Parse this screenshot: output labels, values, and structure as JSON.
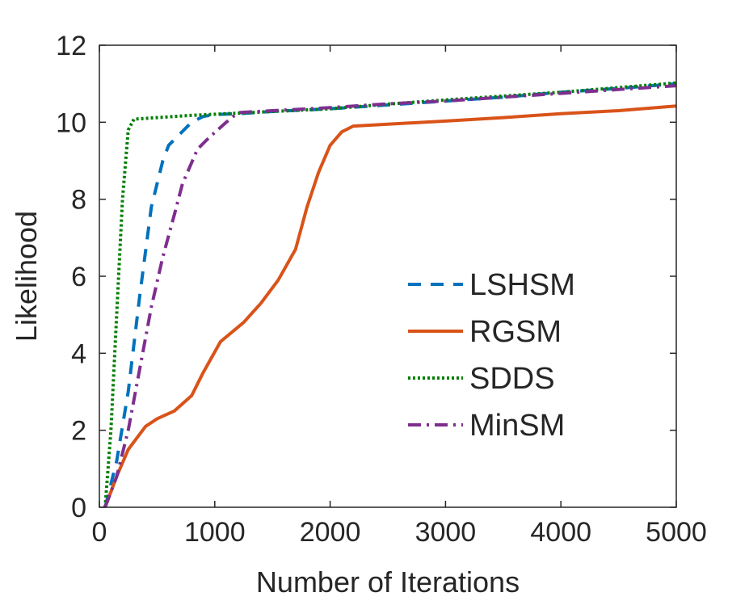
{
  "chart_data": {
    "type": "line",
    "title": "",
    "xlabel": "Number of Iterations",
    "ylabel": "Likelihood",
    "xlim": [
      0,
      5000
    ],
    "ylim": [
      0,
      12
    ],
    "xticks": [
      0,
      1000,
      2000,
      3000,
      4000,
      5000
    ],
    "yticks": [
      0,
      2,
      4,
      6,
      8,
      10,
      12
    ],
    "grid": false,
    "legend_position": "center-right",
    "series": [
      {
        "name": "LSHSM",
        "color": "#0072BD",
        "style": "dashed",
        "points": [
          [
            50,
            0
          ],
          [
            150,
            1.2
          ],
          [
            250,
            3.0
          ],
          [
            350,
            5.5
          ],
          [
            450,
            7.8
          ],
          [
            550,
            9.0
          ],
          [
            600,
            9.4
          ],
          [
            700,
            9.7
          ],
          [
            800,
            10.0
          ],
          [
            900,
            10.15
          ],
          [
            1000,
            10.2
          ],
          [
            1200,
            10.22
          ],
          [
            1500,
            10.28
          ],
          [
            2000,
            10.35
          ],
          [
            2500,
            10.45
          ],
          [
            3000,
            10.55
          ],
          [
            3500,
            10.65
          ],
          [
            4000,
            10.78
          ],
          [
            4500,
            10.88
          ],
          [
            5000,
            11.0
          ]
        ]
      },
      {
        "name": "RGSM",
        "color": "#D95319",
        "style": "solid",
        "points": [
          [
            50,
            0
          ],
          [
            150,
            0.8
          ],
          [
            250,
            1.5
          ],
          [
            400,
            2.1
          ],
          [
            500,
            2.3
          ],
          [
            650,
            2.5
          ],
          [
            800,
            2.9
          ],
          [
            900,
            3.5
          ],
          [
            1050,
            4.3
          ],
          [
            1250,
            4.8
          ],
          [
            1400,
            5.3
          ],
          [
            1550,
            5.9
          ],
          [
            1700,
            6.7
          ],
          [
            1800,
            7.8
          ],
          [
            1900,
            8.7
          ],
          [
            2000,
            9.4
          ],
          [
            2100,
            9.75
          ],
          [
            2200,
            9.9
          ],
          [
            2500,
            9.95
          ],
          [
            3000,
            10.03
          ],
          [
            3500,
            10.12
          ],
          [
            4000,
            10.22
          ],
          [
            4500,
            10.3
          ],
          [
            5000,
            10.42
          ]
        ]
      },
      {
        "name": "SDDS",
        "color": "#007F00",
        "style": "dotted",
        "points": [
          [
            50,
            0
          ],
          [
            100,
            2.0
          ],
          [
            150,
            5.0
          ],
          [
            200,
            8.0
          ],
          [
            250,
            9.8
          ],
          [
            300,
            10.08
          ],
          [
            500,
            10.12
          ],
          [
            800,
            10.18
          ],
          [
            1300,
            10.25
          ],
          [
            2000,
            10.35
          ],
          [
            2500,
            10.47
          ],
          [
            3000,
            10.58
          ],
          [
            3500,
            10.68
          ],
          [
            4000,
            10.78
          ],
          [
            4500,
            10.9
          ],
          [
            5000,
            11.02
          ]
        ]
      },
      {
        "name": "MinSM",
        "color": "#7E2F8E",
        "style": "dashdot",
        "points": [
          [
            50,
            0
          ],
          [
            150,
            0.8
          ],
          [
            250,
            2.0
          ],
          [
            350,
            3.6
          ],
          [
            450,
            5.2
          ],
          [
            550,
            6.5
          ],
          [
            650,
            7.6
          ],
          [
            720,
            8.4
          ],
          [
            850,
            9.3
          ],
          [
            950,
            9.6
          ],
          [
            1100,
            10.0
          ],
          [
            1200,
            10.25
          ],
          [
            1500,
            10.3
          ],
          [
            2000,
            10.38
          ],
          [
            2500,
            10.48
          ],
          [
            3000,
            10.55
          ],
          [
            3500,
            10.65
          ],
          [
            4000,
            10.75
          ],
          [
            4500,
            10.85
          ],
          [
            5000,
            10.95
          ]
        ]
      }
    ]
  }
}
